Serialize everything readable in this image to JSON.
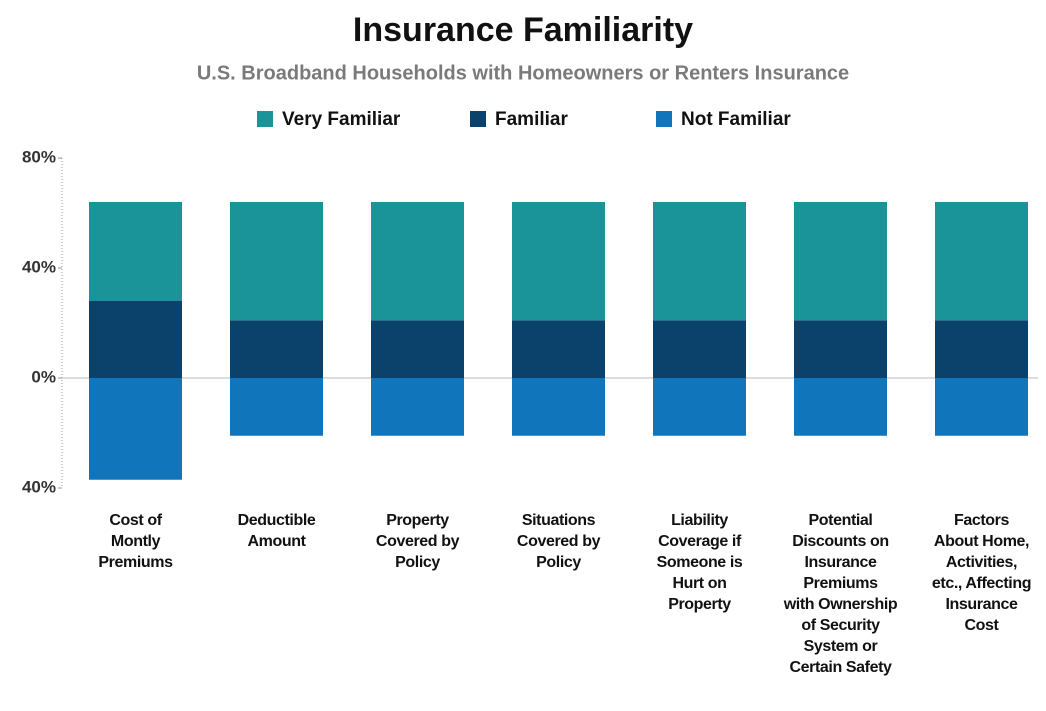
{
  "chart_data": {
    "type": "bar",
    "stacked": true,
    "title": "Insurance Familiarity",
    "subtitle": "U.S. Broadband Households with Homeowners or Renters Insurance",
    "categories": [
      "Cost of\nMontly\nPremiums",
      "Deductible\nAmount",
      "Property\nCovered by\nPolicy",
      "Situations\nCovered by\nPolicy",
      "Liability\nCoverage if\nSomeone is\nHurt on\nProperty",
      "Potential\nDiscounts on\nInsurance\nPremiums\nwith Ownership\nof Security\nSystem or\nCertain Safety",
      "Factors\nAbout Home,\nActivities,\netc., Affecting\nInsurance\nCost"
    ],
    "series": [
      {
        "name": "Very Familiar",
        "color": "#1a9399",
        "values": [
          36,
          43,
          43,
          43,
          43,
          43,
          43
        ]
      },
      {
        "name": "Familiar",
        "color": "#0b426b",
        "values": [
          28,
          21,
          21,
          21,
          21,
          21,
          21
        ]
      },
      {
        "name": "Not Familiar",
        "color": "#1175bb",
        "values": [
          -37,
          -21,
          -21,
          -21,
          -21,
          -21,
          -21
        ]
      }
    ],
    "ylim": [
      -40,
      80
    ],
    "yticks": [
      {
        "value": 80,
        "label": "80%"
      },
      {
        "value": 40,
        "label": "40%"
      },
      {
        "value": 0,
        "label": "0%"
      },
      {
        "value": -40,
        "label": "40%"
      }
    ],
    "legend": "top"
  }
}
